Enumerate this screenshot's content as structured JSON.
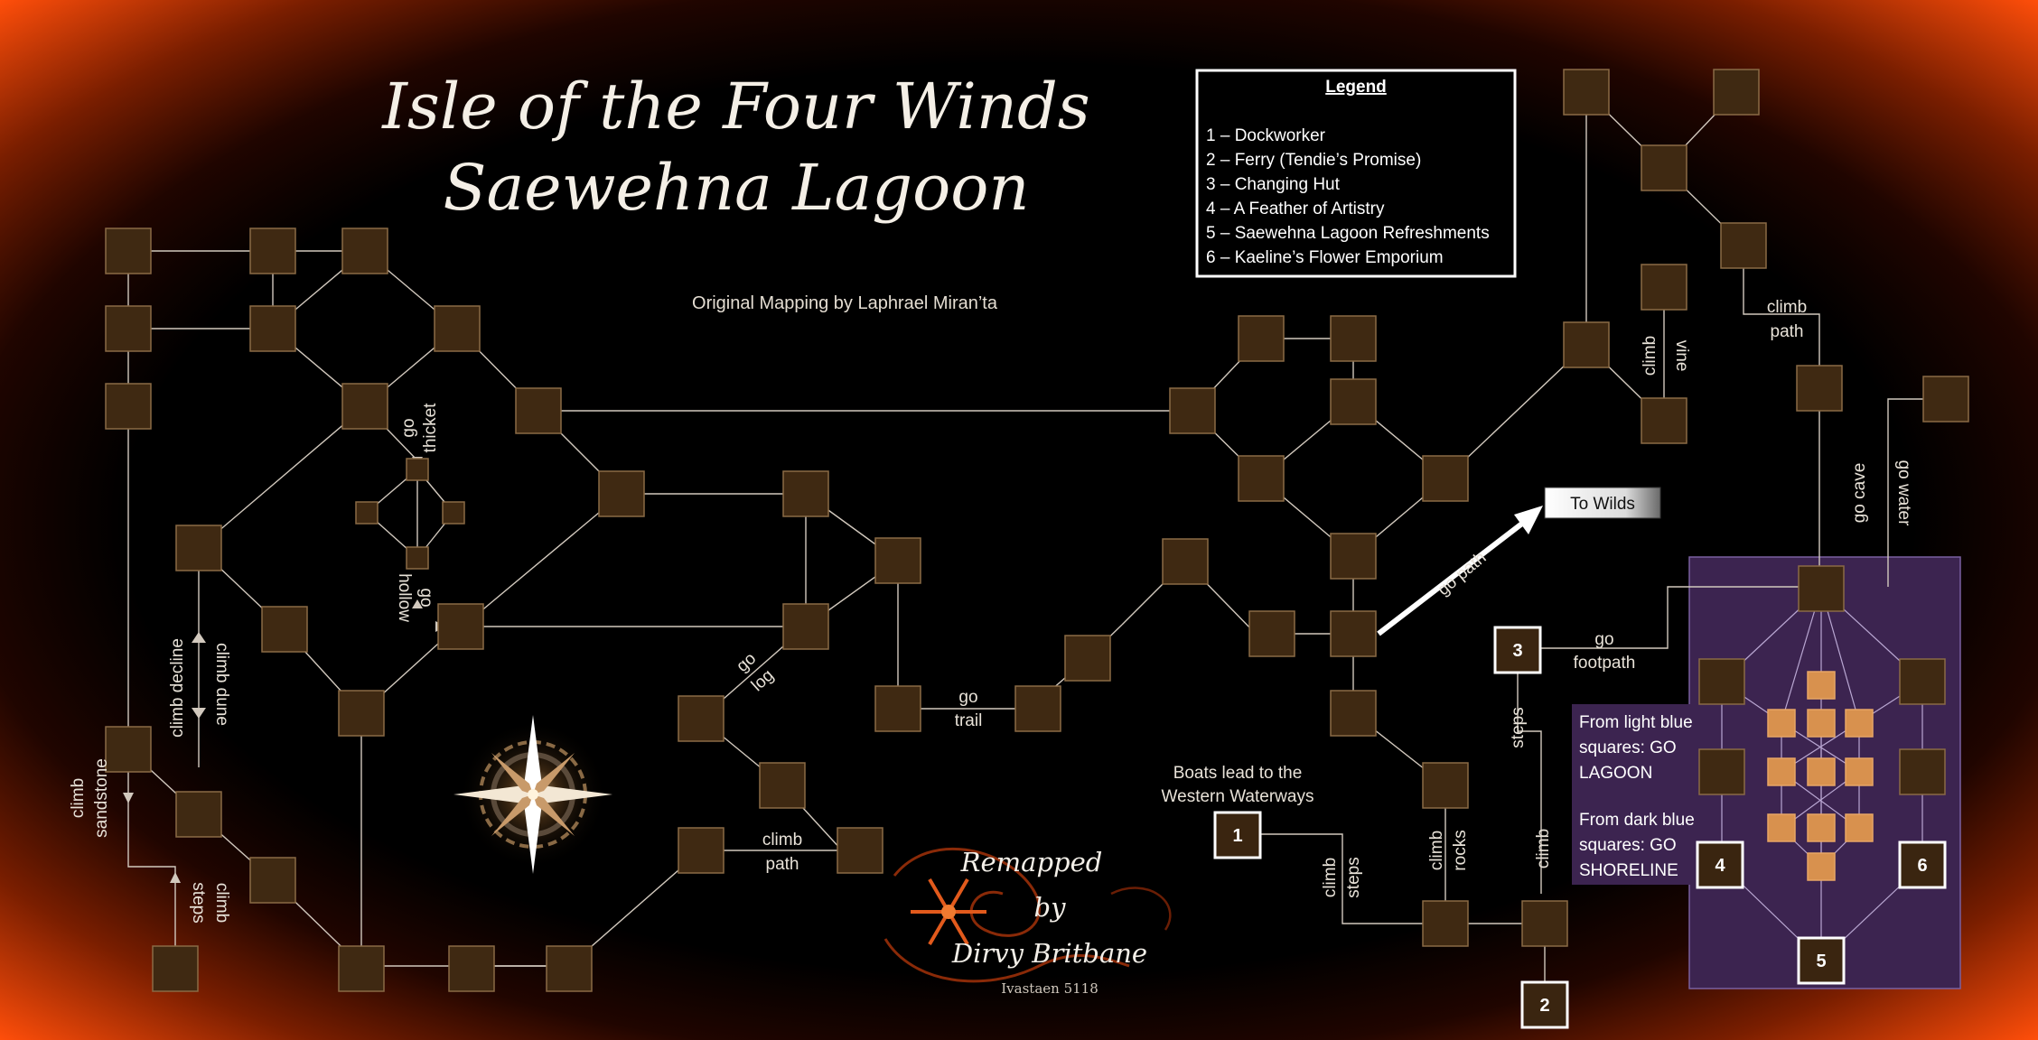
{
  "title": {
    "line1": "Isle of the Four Winds",
    "line2": "Saewehna Lagoon"
  },
  "credits": {
    "original": "Original Mapping by Laphrael Miran’ta",
    "remap1": "Remapped",
    "remap2": "by",
    "remap3": "Dirvy Britbane",
    "date": "Ivastaen 5118"
  },
  "legend": {
    "heading": "Legend",
    "items": [
      "1 – Dockworker",
      "2 – Ferry (Tendie’s Promise)",
      "3 – Changing Hut",
      "4 – A Feather of Artistry",
      "5 – Saewehna Lagoon Refreshments",
      "6 – Kaeline’s Flower Emporium"
    ]
  },
  "to_wilds": "To Wilds",
  "go_path": "go path",
  "boats_note": {
    "line1": "Boats lead to the",
    "line2": "Western Waterways"
  },
  "zone_notes": {
    "light1": "From light blue",
    "light2": "squares: GO",
    "light3": "LAGOON",
    "dark1": "From dark blue",
    "dark2": "squares: GO",
    "dark3": "SHORELINE"
  },
  "labels": {
    "go": "go",
    "thicket": "thicket",
    "hollow": "hollow",
    "log": "log",
    "trail": "trail",
    "climb": "climb",
    "path": "path",
    "climb_decline": "climb decline",
    "climb_dune": "climb dune",
    "sandstone": "sandstone",
    "steps": "steps",
    "vine": "vine",
    "go_cave": "go cave",
    "go_water": "go water",
    "footpath": "footpath",
    "rocks": "rocks"
  },
  "numbered": [
    "1",
    "2",
    "3",
    "4",
    "5",
    "6"
  ],
  "colors": {
    "frame": "#ff5a10",
    "background": "#000000",
    "room": "#3f2912",
    "room_border": "#8a6a45",
    "zone": "#3c2450",
    "zone_room": "#d8914e",
    "line": "#d2c9be"
  },
  "icons": [
    "compass-rose-icon",
    "snowflake-flourish-icon",
    "arrow-to-wilds-icon"
  ]
}
